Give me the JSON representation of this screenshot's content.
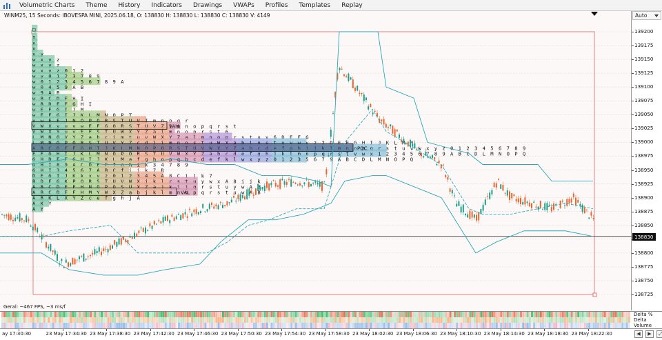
{
  "menu": {
    "items": [
      "Volumetric Charts",
      "Theme",
      "History",
      "Indicators",
      "Drawings",
      "VWAPs",
      "Profiles",
      "Templates",
      "Replay"
    ]
  },
  "chart": {
    "title": "WINM25, 15 Seconds: IBOVESPA MINI, 2025.06.18, O: 138830 H: 138830 L: 138830 C: 138830 V: 4149",
    "stats": "Geral: ~467 FPS, ~3 ms/f",
    "labels": {
      "vah": "VAH",
      "poc": "POC",
      "val": "VAL"
    }
  },
  "price_axis": {
    "scale_mode": "Auto",
    "labels": [
      "139200",
      "139175",
      "139150",
      "139125",
      "139100",
      "139075",
      "139050",
      "139025",
      "139000",
      "138975",
      "138950",
      "138925",
      "138900",
      "138875",
      "138850",
      "138825",
      "138800",
      "138775",
      "138750",
      "138725"
    ],
    "current_price": "138830"
  },
  "indicator_axis": {
    "labels": [
      "Delta %",
      "Delta",
      "Volume"
    ]
  },
  "time_axis": {
    "labels": [
      "ay 17:30:30",
      "23 May 17:34:30",
      "23 May 17:38:30",
      "23 May 17:42:30",
      "23 May 17:46:30",
      "23 May 17:50:30",
      "23 May 17:54:30",
      "23 May 17:58:30",
      "23 May 18:02:30",
      "23 May 18:06:30",
      "23 May 18:10:30",
      "23 May 18:14:30",
      "23 May 18:18:30",
      "23 May 18:22:30"
    ]
  },
  "nav_buttons": [
    "◀",
    "▶",
    "⤢"
  ],
  "tpo_rows": [
    {
      "price": 139200,
      "letters": "□"
    },
    {
      "price": 139190,
      "letters": "I"
    },
    {
      "price": 139180,
      "letters": "x"
    },
    {
      "price": 139170,
      "letters": "x"
    },
    {
      "price": 139160,
      "letters": "x y"
    },
    {
      "price": 139150,
      "letters": "w x y z"
    },
    {
      "price": 139140,
      "letters": "w x y z"
    },
    {
      "price": 139130,
      "letters": "w x y z 0 1 2"
    },
    {
      "price": 139120,
      "letters": "w y 0 1 2 3 7 8 9"
    },
    {
      "price": 139110,
      "letters": "w 0 1 2 3 4 5 6 7 8 9 A"
    },
    {
      "price": 139100,
      "letters": "w 0 4 5 9 A B"
    },
    {
      "price": 139090,
      "letters": "w 9 A B"
    },
    {
      "price": 139080,
      "letters": "w B C D F H I"
    },
    {
      "price": 139070,
      "letters": "w B D E F G H I"
    },
    {
      "price": 139060,
      "letters": "w E F G I J M"
    },
    {
      "price": 139050,
      "letters": "w E F G I J K L M N O P T"
    },
    {
      "price": 139040,
      "letters": "y w E F J N O P Q R S T U V I m n p q r"
    },
    {
      "price": 139030,
      "letters": "V W X y u v w E F G Q R S T U V Z i m n o p q r s t"
    },
    {
      "price": 139020,
      "letters": "V W X Y u v E F S T U W X Y Z a i m n o p r s t 6"
    },
    {
      "price": 139010,
      "letters": "L M N O V Y Z a b c i m t u v W X Y Z a l m n o p r s t u v 6 D E F G"
    },
    {
      "price": 139000,
      "letters": "L M N O P Q R S T U V Y Z c d j i m n o s t u W X a b l n s t u v w y z 2 D E F G H I J K L M N"
    },
    {
      "price": 138990,
      "letters": "A B C D E F G H I J K L M N O P Q R S T U V W X Y Z a b c d e f g h i j k l m n o p q r s t u v w x y z 0 1 2 3 4 5 6 7 8 9"
    },
    {
      "price": 138980,
      "letters": "E F G H I J K L M N O P Q R S T U V W X Y Z a b c d e f g h j k l m n p q r s t v w x 1 2 3 4 5 6 7 8 9 A B C D L M N O P Q"
    },
    {
      "price": 138970,
      "letters": "G H D E F G H I J K L M a f g h o p q b c d e f k l w x y z 0 1 2 3 5 6 7 9 A B C D L M N O P Q"
    },
    {
      "price": 138960,
      "letters": "G H I 8 9 A C D E F f g h i k 3 4 7 8 9"
    },
    {
      "price": 138950,
      "letters": "G H I 3 4 5 6 7 A B C f i j k 7 R"
    },
    {
      "price": 138940,
      "letters": "D E G I J K k x y z 0 1 2 3 4 5 A 8 C i j k 7"
    },
    {
      "price": 138930,
      "letters": "B D F G K P Q R S T U V W X j k l r s t u y w x A 8 i j k"
    },
    {
      "price": 138920,
      "letters": "A B C D E F H N O P Q S U X Z a j k i j q r s t u y w A B"
    },
    {
      "price": 138910,
      "letters": "A B C D E F H M Y W X Z a b j k l m n o p q r s t u w A B"
    },
    {
      "price": 138900,
      "letters": "A B K L X Y Z c e f g h j A"
    },
    {
      "price": 138890,
      "letters": "A K Y"
    },
    {
      "price": 138880,
      "letters": "A Y"
    }
  ],
  "colors": {
    "chart_bg": "#fdf8f8",
    "candle_up": "#1f9e89",
    "candle_down": "#e8662e",
    "vwap_band": "#28a8b8",
    "range_box": "#e05050",
    "poc_fill": "#3a4a7a"
  }
}
